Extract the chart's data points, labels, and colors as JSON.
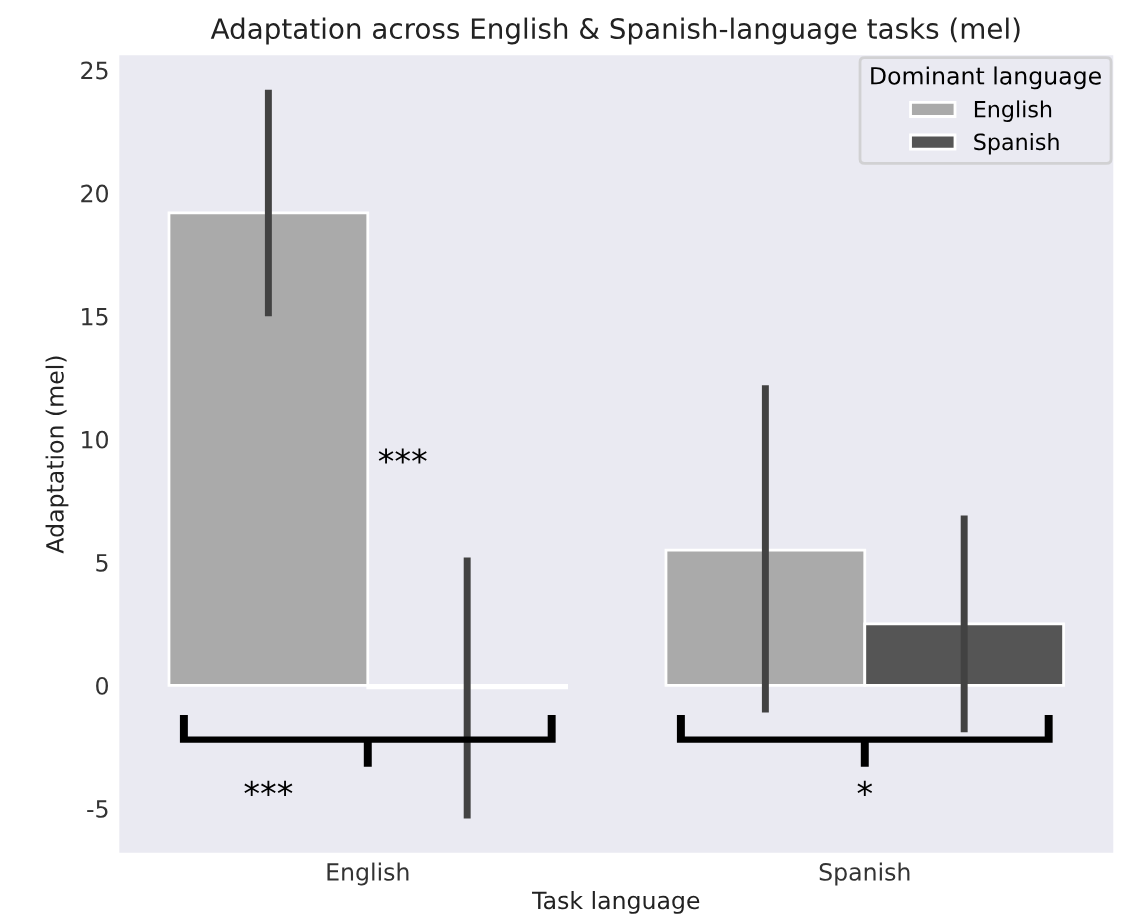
{
  "chart_data": {
    "type": "bar",
    "title": "Adaptation across English & Spanish-language tasks (mel)",
    "xlabel": "Task language",
    "ylabel": "Adaptation (mel)",
    "legend_title": "Dominant language",
    "categories": [
      "English",
      "Spanish"
    ],
    "series": [
      {
        "name": "English",
        "color": "#aaaaaa",
        "values": [
          19.2,
          5.5
        ],
        "errors": [
          [
            15.0,
            24.2
          ],
          [
            -1.1,
            12.2
          ]
        ]
      },
      {
        "name": "Spanish",
        "color": "#555555",
        "values": [
          -0.1,
          2.5
        ],
        "errors": [
          [
            -5.4,
            5.2
          ],
          [
            -1.9,
            6.9
          ]
        ]
      }
    ],
    "ylim": [
      -6.8,
      25.6
    ],
    "yticks": [
      -5,
      0,
      5,
      10,
      15,
      20,
      25
    ],
    "grid": false,
    "legend": "top right",
    "annotations": [
      "***",
      "***",
      "*"
    ]
  }
}
